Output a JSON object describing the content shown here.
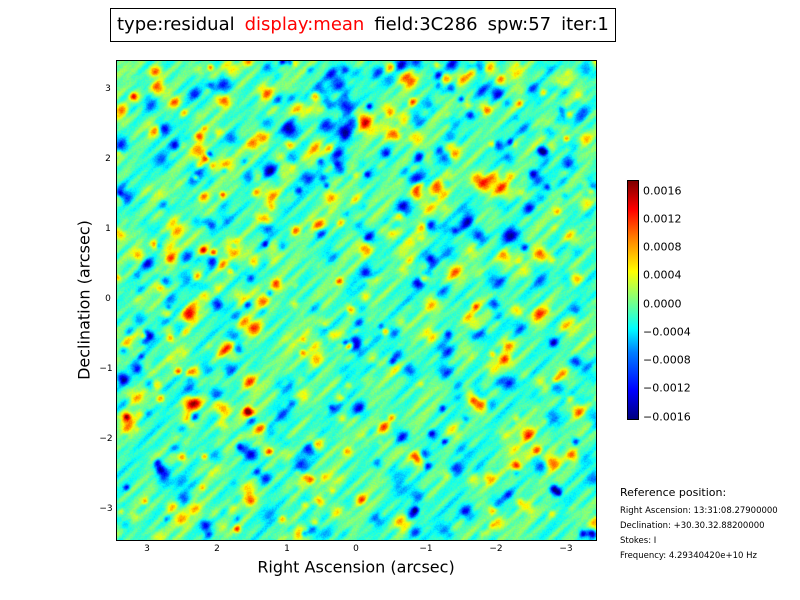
{
  "header": {
    "type": "type:residual",
    "display": "display:mean",
    "field": "field:3C286",
    "spw": "spw:57",
    "iter": "iter:1"
  },
  "axes": {
    "x_label": "Right Ascension (arcsec)",
    "y_label": "Declination (arcsec)",
    "x_ticks": [
      "3",
      "2",
      "1",
      "0",
      "−1",
      "−2",
      "−3"
    ],
    "y_ticks": [
      "3",
      "2",
      "1",
      "0",
      "−1",
      "−2",
      "−3"
    ]
  },
  "colorbar": {
    "ticks": [
      "0.0016",
      "0.0012",
      "0.0008",
      "0.0004",
      "0.0000",
      "−0.0004",
      "−0.0008",
      "−0.0012",
      "−0.0016"
    ],
    "colormap": "jet"
  },
  "reference": {
    "title": "Reference position:",
    "ra": "Right Ascension: 13:31:08.27900000",
    "dec": "Declination: +30.30.32.88200000",
    "stokes": "Stokes: I",
    "frequency": "Frequency: 4.29340420e+10 Hz"
  }
}
